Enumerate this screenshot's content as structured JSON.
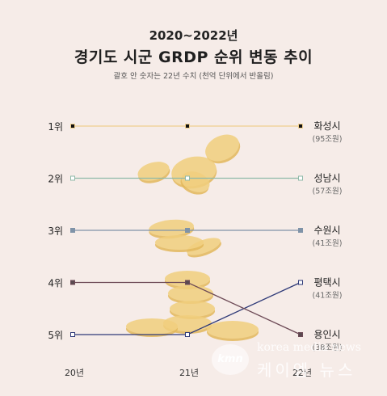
{
  "header": {
    "title_top": "2020~2022년",
    "title_main": "경기도 시군 GRDP 순위 변동 추이",
    "subtitle": "괄호 안 숫자는 22년 수치 (천억 단위에서 반올림)"
  },
  "watermark": {
    "logo": "kmn",
    "english": "korea media news",
    "korean": "케이엠 뉴스"
  },
  "colors": {
    "background": "#f6ece8",
    "coin": "#f1cf7e",
    "coin_shade": "#e3b85c"
  },
  "chart_data": {
    "type": "line",
    "x": [
      "20년",
      "21년",
      "22년"
    ],
    "y_ticks": [
      "1위",
      "2위",
      "3위",
      "4위",
      "5위"
    ],
    "ylim": [
      1,
      5
    ],
    "y_inverted": true,
    "series": [
      {
        "name": "화성시",
        "values": [
          1,
          1,
          1
        ],
        "label": "화성시",
        "sublabel": "(95조원)",
        "color": "#f0cf8e",
        "marker": "#111111"
      },
      {
        "name": "성남시",
        "values": [
          2,
          2,
          2
        ],
        "label": "성남시",
        "sublabel": "(57조원)",
        "color": "#8fb9a8",
        "marker": "#ffffff"
      },
      {
        "name": "수원시",
        "values": [
          3,
          3,
          3
        ],
        "label": "수원시",
        "sublabel": "(41조원)",
        "color": "#7f93a8",
        "marker": "#7f93a8"
      },
      {
        "name": "평택시",
        "values": [
          5,
          5,
          4
        ],
        "label": "평택시",
        "sublabel": "(41조원)",
        "color": "#2f3a78",
        "marker": "#ffffff"
      },
      {
        "name": "용인시",
        "values": [
          4,
          4,
          5
        ],
        "label": "용인시",
        "sublabel": "(38조원)",
        "color": "#6d4a56",
        "marker": "#5a4a50"
      }
    ]
  }
}
